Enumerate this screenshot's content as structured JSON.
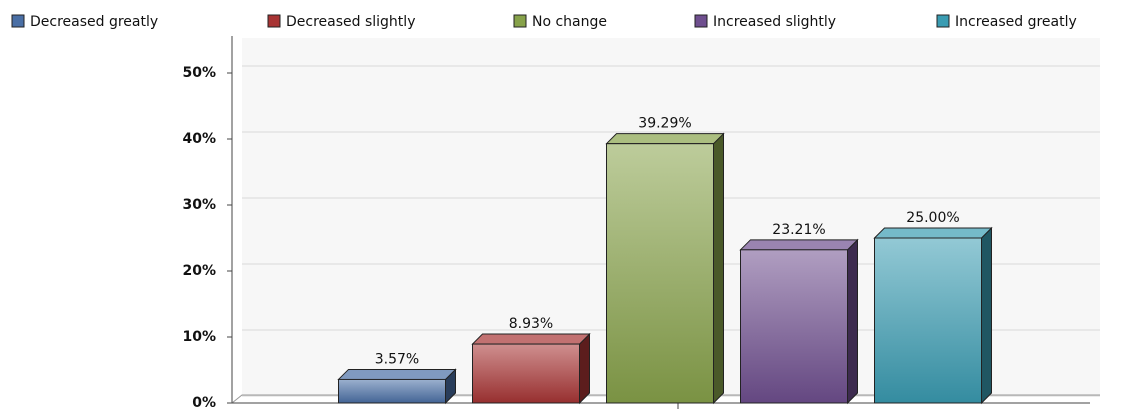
{
  "chart_data": {
    "type": "bar3d",
    "series": [
      {
        "name": "Decreased greatly",
        "color": "#4a6fa5",
        "values": [
          3.57
        ],
        "value_labels": [
          "3.57%"
        ]
      },
      {
        "name": "Decreased slightly",
        "color": "#a83434",
        "values": [
          8.93
        ],
        "value_labels": [
          "8.93%"
        ]
      },
      {
        "name": "No change",
        "color": "#87a24a",
        "values": [
          39.29
        ],
        "value_labels": [
          "39.29%"
        ]
      },
      {
        "name": "Increased slightly",
        "color": "#6f4f8f",
        "values": [
          23.21
        ],
        "value_labels": [
          "23.21%"
        ]
      },
      {
        "name": "Increased greatly",
        "color": "#3a9cb2",
        "values": [
          25.0
        ],
        "value_labels": [
          "25.00%"
        ]
      }
    ],
    "ylim": [
      0,
      55
    ],
    "yticks": [
      {
        "value": 0,
        "label": "0%"
      },
      {
        "value": 10,
        "label": "10%"
      },
      {
        "value": 20,
        "label": "20%"
      },
      {
        "value": 30,
        "label": "30%"
      },
      {
        "value": 40,
        "label": "40%"
      },
      {
        "value": 50,
        "label": "50%"
      }
    ],
    "grid": true,
    "legend": "top"
  }
}
